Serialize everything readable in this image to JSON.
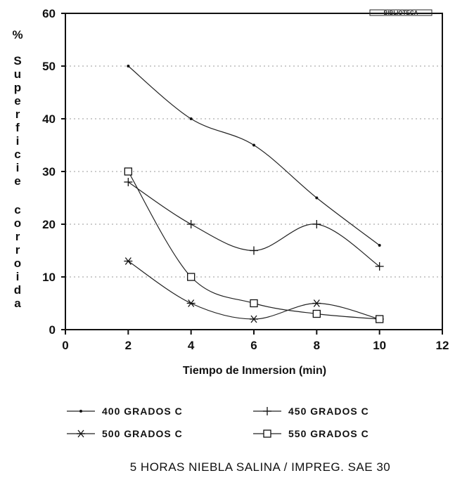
{
  "chart_data": {
    "type": "line",
    "x": [
      2,
      4,
      6,
      8,
      10
    ],
    "xlim": [
      0,
      12
    ],
    "ylim": [
      0,
      60
    ],
    "xticks": [
      "0",
      "2",
      "4",
      "6",
      "8",
      "10",
      "12"
    ],
    "yticks": [
      "0",
      "10",
      "20",
      "30",
      "40",
      "50",
      "60"
    ],
    "xlabel": "Tiempo de Inmersion (min)",
    "ylabel_prefix": "%",
    "ylabel": "Superficie corroida",
    "grid": "horizontal dotted",
    "legend_position": "bottom",
    "series": [
      {
        "name": "400 GRADOS C",
        "marker": "dot",
        "values": [
          50,
          40,
          35,
          25,
          16
        ]
      },
      {
        "name": "450 GRADOS C",
        "marker": "plus",
        "values": [
          28,
          20,
          15,
          20,
          12
        ]
      },
      {
        "name": "500 GRADOS C",
        "marker": "star",
        "values": [
          13,
          5,
          2,
          5,
          2
        ]
      },
      {
        "name": "550 GRADOS C",
        "marker": "square",
        "values": [
          30,
          10,
          5,
          3,
          2
        ]
      }
    ],
    "caption": "5 HORAS NIEBLA SALINA / IMPREG. SAE 30",
    "stamp": "BIBLIOTECA"
  }
}
